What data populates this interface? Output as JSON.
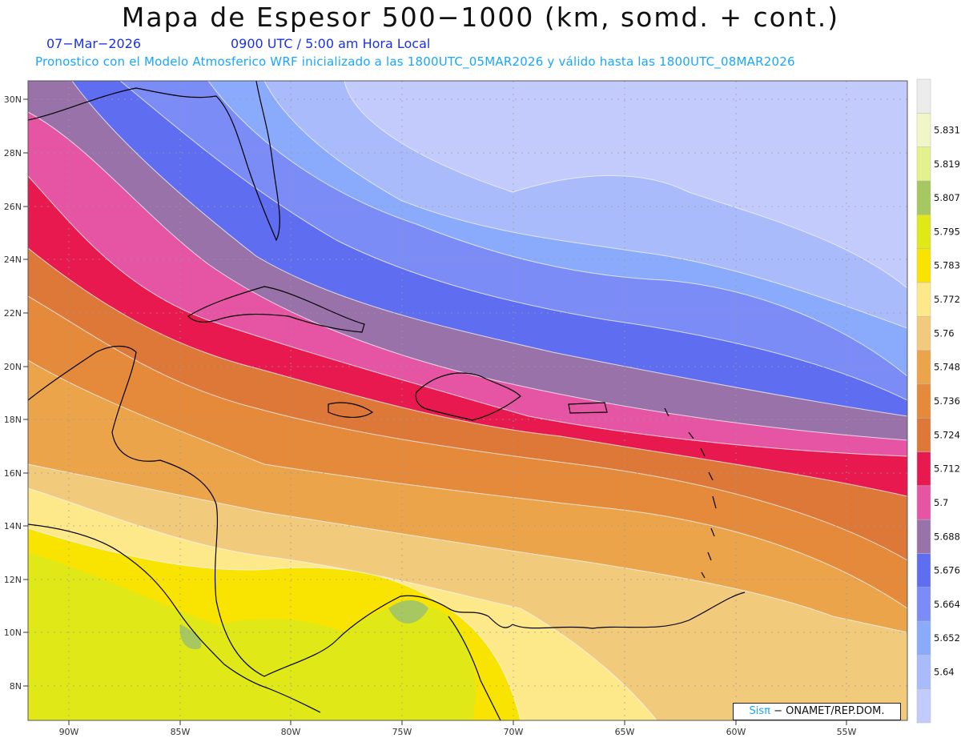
{
  "header": {
    "title": "Mapa de Espesor 500−1000 (km, somd. + cont.)",
    "date": "07−Mar−2026",
    "time": "0900 UTC / 5:00 am Hora Local",
    "forecast": "Pronostico con el Modelo Atmosferico WRF inicializado a las 1800UTC_05MAR2026 y válido hasta las  1800UTC_08MAR2026"
  },
  "axes": {
    "lat_labels": [
      "30N",
      "28N",
      "26N",
      "24N",
      "22N",
      "20N",
      "18N",
      "16N",
      "14N",
      "12N",
      "10N",
      "8N"
    ],
    "lon_labels": [
      "90W",
      "85W",
      "80W",
      "75W",
      "70W",
      "65W",
      "60W",
      "55W"
    ]
  },
  "colorbar": {
    "levels": [
      "5.64",
      "5.652",
      "5.664",
      "5.676",
      "5.688",
      "5.7",
      "5.712",
      "5.724",
      "5.736",
      "5.748",
      "5.76",
      "5.772",
      "5.783",
      "5.795",
      "5.807",
      "5.819",
      "5.831"
    ],
    "colors": [
      "#c2cbfb",
      "#a9bbfa",
      "#8aaafc",
      "#7b8cf7",
      "#5f6ef0",
      "#9a72aa",
      "#e654a4",
      "#e8194e",
      "#dd7838",
      "#e48a3a",
      "#eba44a",
      "#f2ca7c",
      "#fde98a",
      "#f8e400",
      "#e0e818",
      "#a7c860",
      "#e3f28c",
      "#f1f6c8",
      "#ececec"
    ]
  },
  "credit": {
    "brand": "Sisπ",
    "text": " − ONAMET/REP.DOM."
  }
}
